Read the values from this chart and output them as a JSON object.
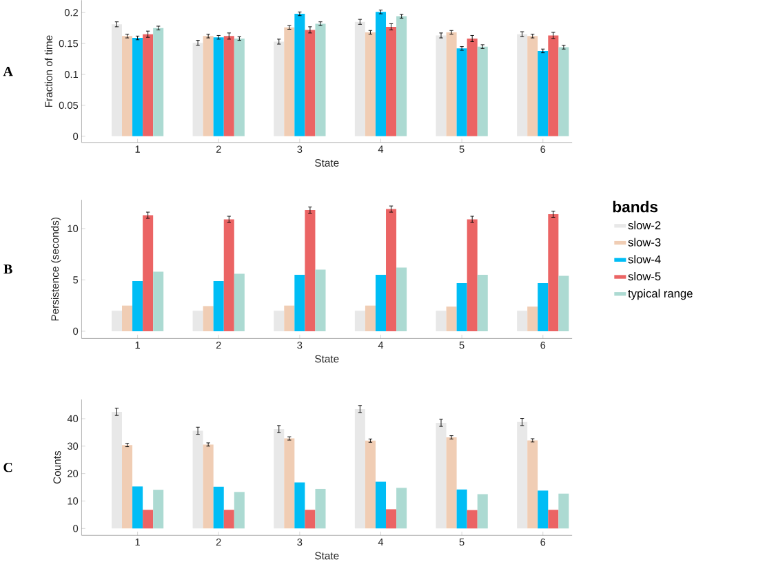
{
  "chart_data": [
    {
      "type": "bar",
      "title": "A",
      "xlabel": "State",
      "ylabel": "Fraction of time",
      "categories": [
        "1",
        "2",
        "3",
        "4",
        "5",
        "6"
      ],
      "ylim": [
        -0.01,
        0.22
      ],
      "yticks": [
        0,
        0.05,
        0.1,
        0.15,
        0.2
      ],
      "series": [
        {
          "color": "#e8e8e8",
          "values": [
            0.181,
            0.151,
            0.153,
            0.185,
            0.163,
            0.165
          ],
          "errors": [
            0.004,
            0.004,
            0.004,
            0.004,
            0.004,
            0.004
          ]
        },
        {
          "color": "#f0cdb4",
          "values": [
            0.162,
            0.162,
            0.176,
            0.168,
            0.168,
            0.162
          ],
          "errors": [
            0.003,
            0.003,
            0.003,
            0.003,
            0.003,
            0.003
          ]
        },
        {
          "color": "#00bdf5",
          "values": [
            0.159,
            0.16,
            0.198,
            0.201,
            0.142,
            0.138
          ],
          "errors": [
            0.003,
            0.003,
            0.003,
            0.003,
            0.003,
            0.003
          ]
        },
        {
          "color": "#eb6464",
          "values": [
            0.165,
            0.162,
            0.172,
            0.177,
            0.158,
            0.163
          ],
          "errors": [
            0.005,
            0.005,
            0.005,
            0.005,
            0.005,
            0.005
          ]
        },
        {
          "color": "#acdad2",
          "values": [
            0.175,
            0.158,
            0.182,
            0.194,
            0.145,
            0.144
          ],
          "errors": [
            0.003,
            0.003,
            0.003,
            0.003,
            0.003,
            0.003
          ]
        }
      ]
    },
    {
      "type": "bar",
      "title": "B",
      "xlabel": "State",
      "ylabel": "Persistence (seconds)",
      "legend_title": "bands",
      "legend": "right",
      "categories": [
        "1",
        "2",
        "3",
        "4",
        "5",
        "6"
      ],
      "ylim": [
        -0.7,
        12.8
      ],
      "yticks": [
        0,
        5,
        10
      ],
      "series": [
        {
          "name": "slow-2",
          "color": "#e8e8e8",
          "values": [
            2.0,
            2.0,
            2.0,
            2.0,
            2.0,
            2.0
          ]
        },
        {
          "name": "slow-3",
          "color": "#f0cdb4",
          "values": [
            2.5,
            2.45,
            2.5,
            2.5,
            2.4,
            2.4
          ]
        },
        {
          "name": "slow-4",
          "color": "#00bdf5",
          "values": [
            4.9,
            4.9,
            5.5,
            5.5,
            4.7,
            4.7
          ]
        },
        {
          "name": "slow-5",
          "color": "#eb6464",
          "values": [
            11.3,
            10.9,
            11.8,
            11.9,
            10.9,
            11.4
          ],
          "errors": [
            0.3,
            0.3,
            0.3,
            0.3,
            0.3,
            0.3
          ]
        },
        {
          "name": "typical range",
          "color": "#acdad2",
          "values": [
            5.8,
            5.6,
            6.0,
            6.2,
            5.5,
            5.4
          ]
        }
      ]
    },
    {
      "type": "bar",
      "title": "C",
      "xlabel": "State",
      "ylabel": "Counts",
      "categories": [
        "1",
        "2",
        "3",
        "4",
        "5",
        "6"
      ],
      "ylim": [
        -2.5,
        47
      ],
      "yticks": [
        0,
        10,
        20,
        30,
        40
      ],
      "series": [
        {
          "color": "#e8e8e8",
          "values": [
            42.5,
            35.6,
            36.2,
            43.5,
            38.5,
            38.8
          ],
          "errors": [
            1.3,
            1.3,
            1.3,
            1.3,
            1.3,
            1.3
          ]
        },
        {
          "color": "#f0cdb4",
          "values": [
            30.4,
            30.6,
            32.8,
            32.0,
            33.2,
            32.1
          ],
          "errors": [
            0.6,
            0.6,
            0.6,
            0.6,
            0.6,
            0.6
          ]
        },
        {
          "color": "#00bdf5",
          "values": [
            15.3,
            15.2,
            16.8,
            17.0,
            14.2,
            13.8
          ]
        },
        {
          "color": "#eb6464",
          "values": [
            6.8,
            6.8,
            6.8,
            7.0,
            6.7,
            6.8
          ]
        },
        {
          "color": "#acdad2",
          "values": [
            14.1,
            13.3,
            14.4,
            14.8,
            12.5,
            12.7
          ]
        }
      ]
    }
  ]
}
